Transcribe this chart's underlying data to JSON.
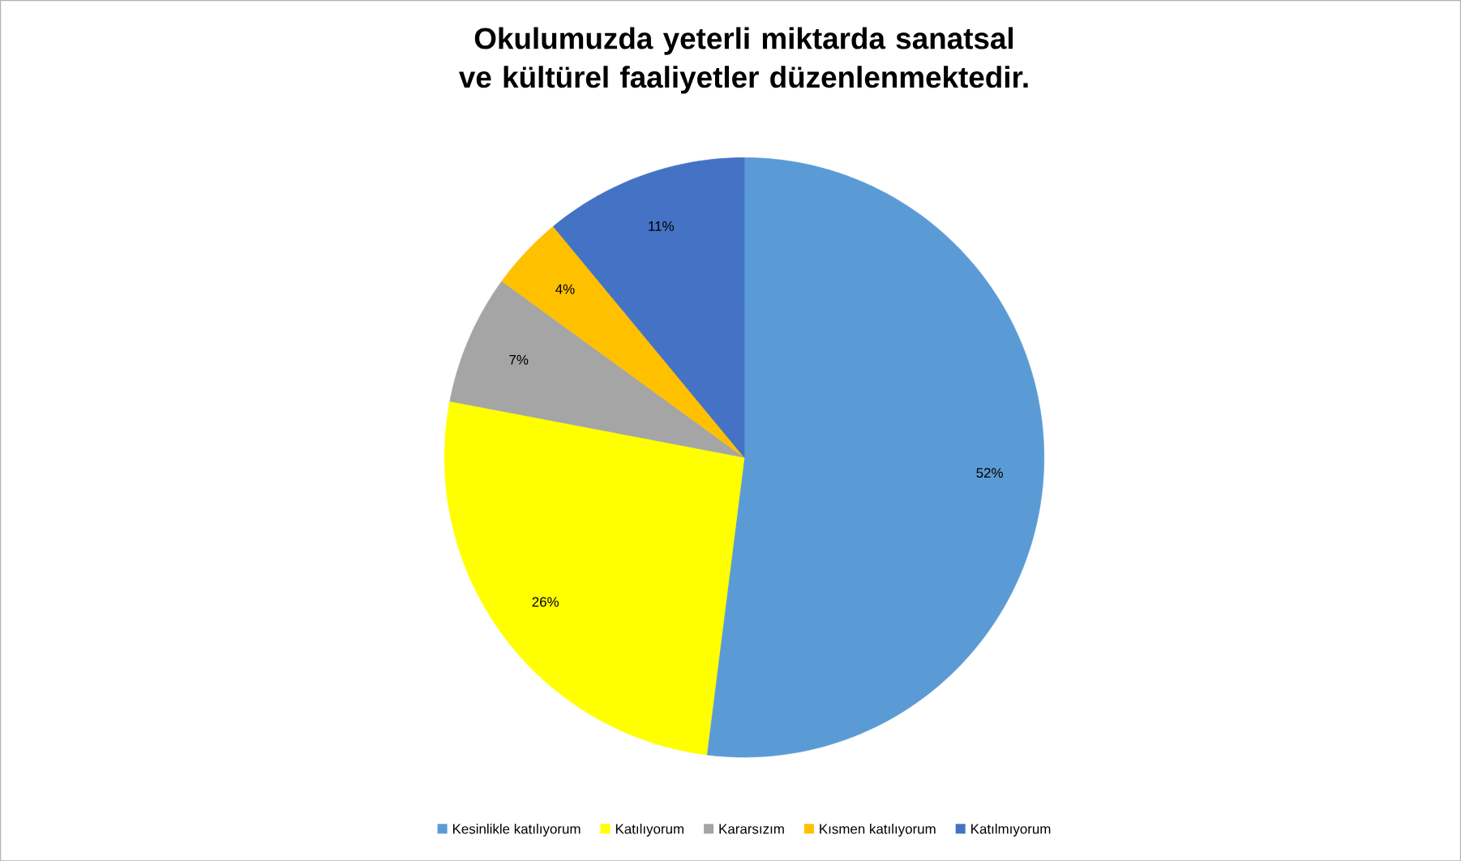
{
  "chart_data": {
    "type": "pie",
    "title": "Okulumuzda yeterli miktarda sanatsal ve kültürel faaliyetler düzenlenmektedir.",
    "categories": [
      "Kesinlikle katılıyorum",
      "Katılıyorum",
      "Kararsızım",
      "Kısmen katılıyorum",
      "Katılmıyorum"
    ],
    "values": [
      52,
      26,
      7,
      4,
      11
    ],
    "value_labels": [
      "52%",
      "26%",
      "7%",
      "4%",
      "11%"
    ],
    "colors": [
      "#5b9bd5",
      "#ffff00",
      "#a5a5a5",
      "#ffc000",
      "#4472c4"
    ],
    "legend": "bottom"
  }
}
